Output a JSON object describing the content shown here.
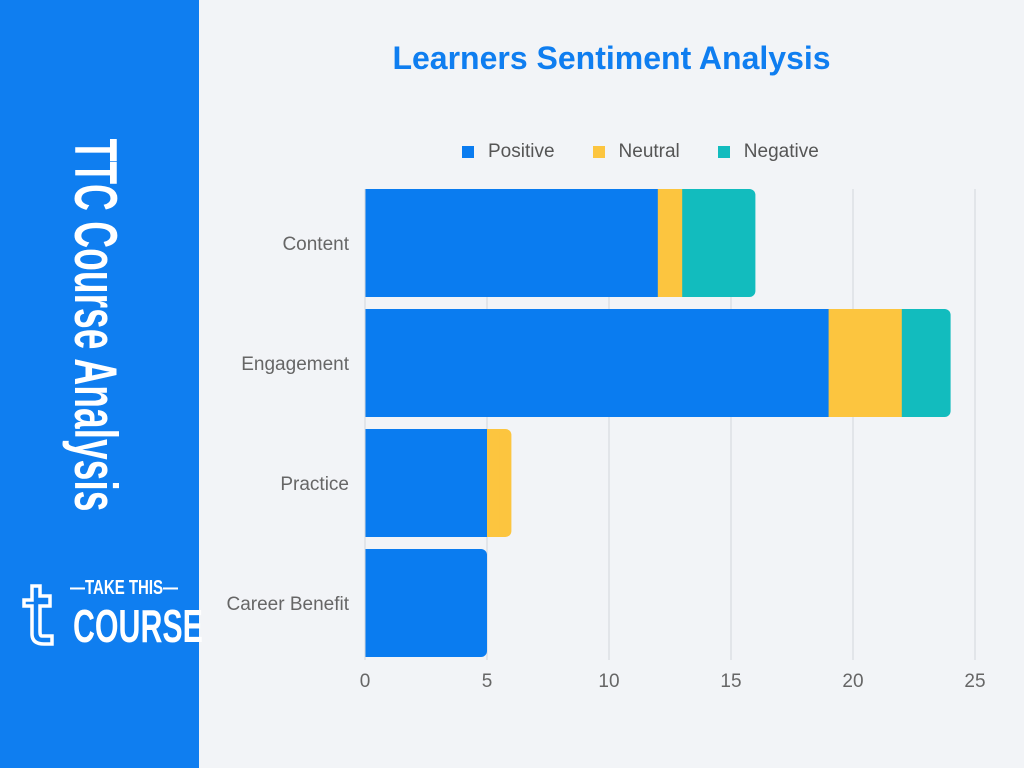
{
  "sidebar": {
    "title": "TTC Course Analysis",
    "logo": {
      "line1": "—TAKE THIS—",
      "line2": "COURSE",
      "mark": "t"
    }
  },
  "colors": {
    "sidebar": "#0f7ef0",
    "positive": "#0a7cf0",
    "neutral": "#fcc53f",
    "negative": "#12bcbe",
    "title": "#0f7ef0"
  },
  "chart_data": {
    "type": "bar",
    "orientation": "horizontal",
    "stacked": true,
    "title": "Learners Sentiment Analysis",
    "categories": [
      "Content",
      "Engagement",
      "Practice",
      "Career Benefit"
    ],
    "series": [
      {
        "name": "Positive",
        "values": [
          12,
          19,
          5,
          5
        ]
      },
      {
        "name": "Neutral",
        "values": [
          1,
          3,
          1,
          0
        ]
      },
      {
        "name": "Negative",
        "values": [
          3,
          2,
          0,
          0
        ]
      }
    ],
    "xlim": [
      0,
      25
    ],
    "xticks": [
      "0",
      "5",
      "10",
      "15",
      "20",
      "25"
    ],
    "grid": true,
    "legend": "top"
  }
}
